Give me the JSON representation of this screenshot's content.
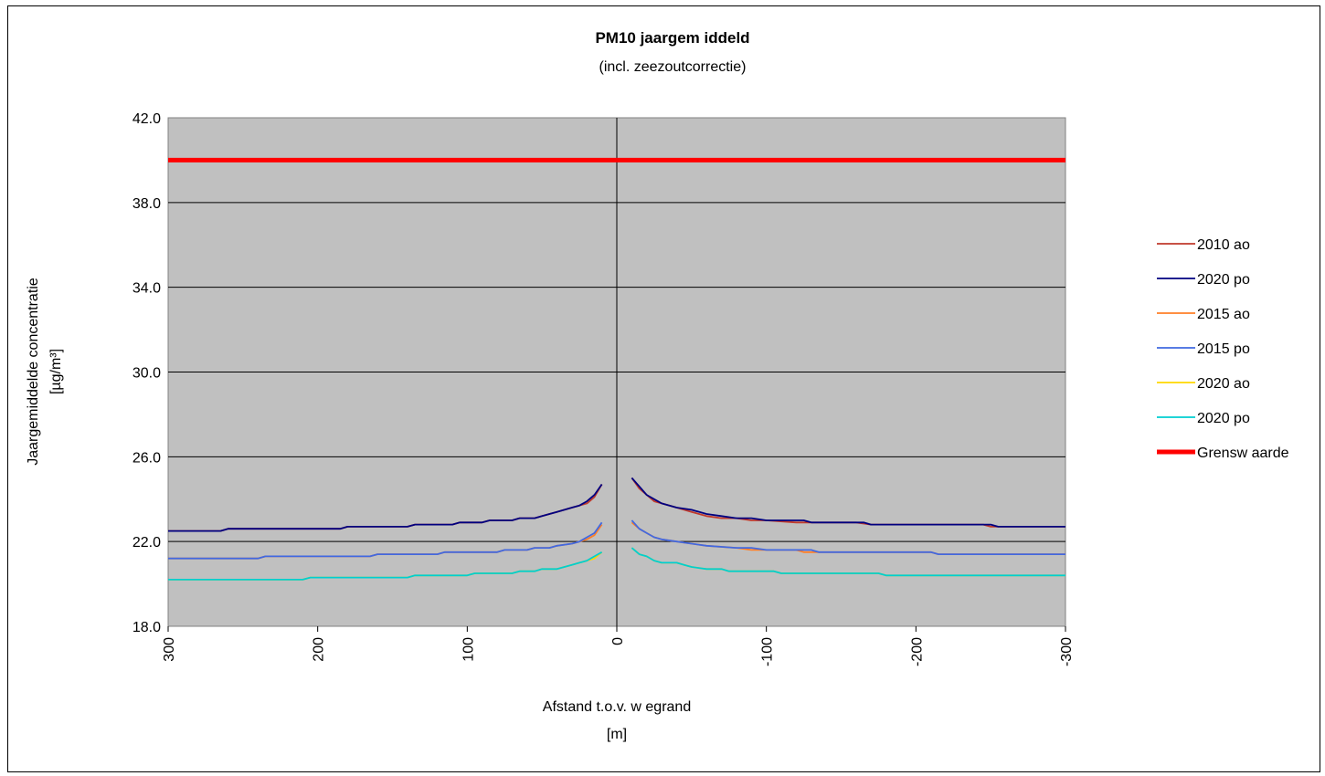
{
  "chart_data": {
    "type": "line",
    "title": "PM10 jaargem iddeld",
    "subtitle": "(incl. zeezoutcorrectie)",
    "xlabel": "Afstand t.o.v. w egrand",
    "xlabel_unit": "[m]",
    "ylabel": "Jaargemiddelde concentratie",
    "ylabel_unit": "[µg/m³]",
    "ylim": [
      18.0,
      42.0
    ],
    "yticks": [
      "18.0",
      "22.0",
      "26.0",
      "30.0",
      "34.0",
      "38.0",
      "42.0"
    ],
    "xlim": [
      300,
      -300
    ],
    "xticks": [
      "300",
      "200",
      "100",
      "0",
      "-100",
      "-200",
      "-300"
    ],
    "grid": "horizontal",
    "plot_background": "#c0c0c0",
    "legend_position": "right",
    "series": [
      {
        "name": "2010 ao",
        "color": "#c0392b",
        "left": [
          [
            300,
            22.5
          ],
          [
            265,
            22.5
          ],
          [
            260,
            22.6
          ],
          [
            200,
            22.6
          ],
          [
            185,
            22.6
          ],
          [
            180,
            22.7
          ],
          [
            140,
            22.7
          ],
          [
            135,
            22.8
          ],
          [
            110,
            22.8
          ],
          [
            105,
            22.9
          ],
          [
            90,
            22.9
          ],
          [
            85,
            23.0
          ],
          [
            70,
            23.0
          ],
          [
            65,
            23.1
          ],
          [
            55,
            23.1
          ],
          [
            50,
            23.2
          ],
          [
            45,
            23.3
          ],
          [
            40,
            23.4
          ],
          [
            35,
            23.5
          ],
          [
            30,
            23.6
          ],
          [
            25,
            23.7
          ],
          [
            20,
            23.8
          ],
          [
            15,
            24.1
          ],
          [
            10,
            24.7
          ]
        ],
        "right": [
          [
            -10,
            25.0
          ],
          [
            -15,
            24.5
          ],
          [
            -20,
            24.2
          ],
          [
            -25,
            23.9
          ],
          [
            -30,
            23.8
          ],
          [
            -40,
            23.6
          ],
          [
            -50,
            23.4
          ],
          [
            -60,
            23.2
          ],
          [
            -70,
            23.1
          ],
          [
            -80,
            23.1
          ],
          [
            -90,
            23.0
          ],
          [
            -100,
            23.0
          ],
          [
            -120,
            22.9
          ],
          [
            -160,
            22.9
          ],
          [
            -170,
            22.8
          ],
          [
            -245,
            22.8
          ],
          [
            -250,
            22.7
          ],
          [
            -300,
            22.7
          ]
        ]
      },
      {
        "name": "2020 po",
        "color": "#000080",
        "left": [
          [
            300,
            22.5
          ],
          [
            265,
            22.5
          ],
          [
            260,
            22.6
          ],
          [
            200,
            22.6
          ],
          [
            185,
            22.6
          ],
          [
            180,
            22.7
          ],
          [
            140,
            22.7
          ],
          [
            135,
            22.8
          ],
          [
            110,
            22.8
          ],
          [
            105,
            22.9
          ],
          [
            90,
            22.9
          ],
          [
            85,
            23.0
          ],
          [
            70,
            23.0
          ],
          [
            65,
            23.1
          ],
          [
            55,
            23.1
          ],
          [
            50,
            23.2
          ],
          [
            45,
            23.3
          ],
          [
            40,
            23.4
          ],
          [
            35,
            23.5
          ],
          [
            30,
            23.6
          ],
          [
            25,
            23.7
          ],
          [
            20,
            23.9
          ],
          [
            15,
            24.2
          ],
          [
            10,
            24.7
          ]
        ],
        "right": [
          [
            -10,
            25.0
          ],
          [
            -15,
            24.6
          ],
          [
            -20,
            24.2
          ],
          [
            -25,
            24.0
          ],
          [
            -30,
            23.8
          ],
          [
            -40,
            23.6
          ],
          [
            -50,
            23.5
          ],
          [
            -60,
            23.3
          ],
          [
            -70,
            23.2
          ],
          [
            -80,
            23.1
          ],
          [
            -90,
            23.1
          ],
          [
            -100,
            23.0
          ],
          [
            -125,
            23.0
          ],
          [
            -130,
            22.9
          ],
          [
            -165,
            22.9
          ],
          [
            -170,
            22.8
          ],
          [
            -250,
            22.8
          ],
          [
            -255,
            22.7
          ],
          [
            -300,
            22.7
          ]
        ]
      },
      {
        "name": "2015 ao",
        "color": "#ff7f27",
        "left": [
          [
            300,
            21.2
          ],
          [
            240,
            21.2
          ],
          [
            235,
            21.3
          ],
          [
            165,
            21.3
          ],
          [
            160,
            21.4
          ],
          [
            120,
            21.4
          ],
          [
            115,
            21.5
          ],
          [
            80,
            21.5
          ],
          [
            75,
            21.6
          ],
          [
            60,
            21.6
          ],
          [
            55,
            21.7
          ],
          [
            45,
            21.7
          ],
          [
            40,
            21.8
          ],
          [
            30,
            21.9
          ],
          [
            25,
            22.0
          ],
          [
            20,
            22.1
          ],
          [
            15,
            22.3
          ],
          [
            10,
            22.8
          ]
        ],
        "right": [
          [
            -10,
            22.9
          ],
          [
            -15,
            22.6
          ],
          [
            -20,
            22.4
          ],
          [
            -25,
            22.2
          ],
          [
            -30,
            22.1
          ],
          [
            -40,
            22.0
          ],
          [
            -50,
            21.9
          ],
          [
            -60,
            21.8
          ],
          [
            -80,
            21.7
          ],
          [
            -90,
            21.6
          ],
          [
            -120,
            21.6
          ],
          [
            -125,
            21.5
          ],
          [
            -210,
            21.5
          ],
          [
            -215,
            21.4
          ],
          [
            -300,
            21.4
          ]
        ]
      },
      {
        "name": "2015 po",
        "color": "#4169e1",
        "left": [
          [
            300,
            21.2
          ],
          [
            240,
            21.2
          ],
          [
            235,
            21.3
          ],
          [
            165,
            21.3
          ],
          [
            160,
            21.4
          ],
          [
            120,
            21.4
          ],
          [
            115,
            21.5
          ],
          [
            80,
            21.5
          ],
          [
            75,
            21.6
          ],
          [
            60,
            21.6
          ],
          [
            55,
            21.7
          ],
          [
            45,
            21.7
          ],
          [
            40,
            21.8
          ],
          [
            30,
            21.9
          ],
          [
            25,
            22.0
          ],
          [
            20,
            22.2
          ],
          [
            15,
            22.4
          ],
          [
            10,
            22.9
          ]
        ],
        "right": [
          [
            -10,
            23.0
          ],
          [
            -15,
            22.6
          ],
          [
            -20,
            22.4
          ],
          [
            -25,
            22.2
          ],
          [
            -30,
            22.1
          ],
          [
            -40,
            22.0
          ],
          [
            -50,
            21.9
          ],
          [
            -60,
            21.8
          ],
          [
            -80,
            21.7
          ],
          [
            -90,
            21.7
          ],
          [
            -100,
            21.6
          ],
          [
            -130,
            21.6
          ],
          [
            -135,
            21.5
          ],
          [
            -210,
            21.5
          ],
          [
            -215,
            21.4
          ],
          [
            -300,
            21.4
          ]
        ]
      },
      {
        "name": "2020 ao",
        "color": "#ffd700",
        "left": [
          [
            300,
            20.2
          ],
          [
            210,
            20.2
          ],
          [
            205,
            20.3
          ],
          [
            140,
            20.3
          ],
          [
            135,
            20.4
          ],
          [
            100,
            20.4
          ],
          [
            95,
            20.5
          ],
          [
            70,
            20.5
          ],
          [
            65,
            20.6
          ],
          [
            55,
            20.6
          ],
          [
            50,
            20.7
          ],
          [
            40,
            20.7
          ],
          [
            35,
            20.8
          ],
          [
            30,
            20.9
          ],
          [
            25,
            21.0
          ],
          [
            20,
            21.1
          ],
          [
            15,
            21.2
          ],
          [
            10,
            21.5
          ]
        ],
        "right": [
          [
            -10,
            21.7
          ],
          [
            -15,
            21.4
          ],
          [
            -20,
            21.3
          ],
          [
            -25,
            21.1
          ],
          [
            -30,
            21.0
          ],
          [
            -40,
            21.0
          ],
          [
            -45,
            20.9
          ],
          [
            -50,
            20.8
          ],
          [
            -60,
            20.7
          ],
          [
            -70,
            20.7
          ],
          [
            -75,
            20.6
          ],
          [
            -105,
            20.6
          ],
          [
            -110,
            20.5
          ],
          [
            -175,
            20.5
          ],
          [
            -180,
            20.4
          ],
          [
            -300,
            20.4
          ]
        ]
      },
      {
        "name": "2020 po",
        "color": "#00ced1",
        "left": [
          [
            300,
            20.2
          ],
          [
            210,
            20.2
          ],
          [
            205,
            20.3
          ],
          [
            140,
            20.3
          ],
          [
            135,
            20.4
          ],
          [
            100,
            20.4
          ],
          [
            95,
            20.5
          ],
          [
            70,
            20.5
          ],
          [
            65,
            20.6
          ],
          [
            55,
            20.6
          ],
          [
            50,
            20.7
          ],
          [
            40,
            20.7
          ],
          [
            35,
            20.8
          ],
          [
            30,
            20.9
          ],
          [
            25,
            21.0
          ],
          [
            20,
            21.1
          ],
          [
            15,
            21.3
          ],
          [
            10,
            21.5
          ]
        ],
        "right": [
          [
            -10,
            21.7
          ],
          [
            -15,
            21.4
          ],
          [
            -20,
            21.3
          ],
          [
            -25,
            21.1
          ],
          [
            -30,
            21.0
          ],
          [
            -40,
            21.0
          ],
          [
            -45,
            20.9
          ],
          [
            -50,
            20.8
          ],
          [
            -60,
            20.7
          ],
          [
            -70,
            20.7
          ],
          [
            -75,
            20.6
          ],
          [
            -105,
            20.6
          ],
          [
            -110,
            20.5
          ],
          [
            -175,
            20.5
          ],
          [
            -180,
            20.4
          ],
          [
            -300,
            20.4
          ]
        ]
      },
      {
        "name": "Grensw aarde",
        "color": "#ff0000",
        "left": [
          [
            300,
            40.0
          ],
          [
            0,
            40.0
          ]
        ],
        "right": [
          [
            0,
            40.0
          ],
          [
            -300,
            40.0
          ]
        ]
      }
    ]
  }
}
